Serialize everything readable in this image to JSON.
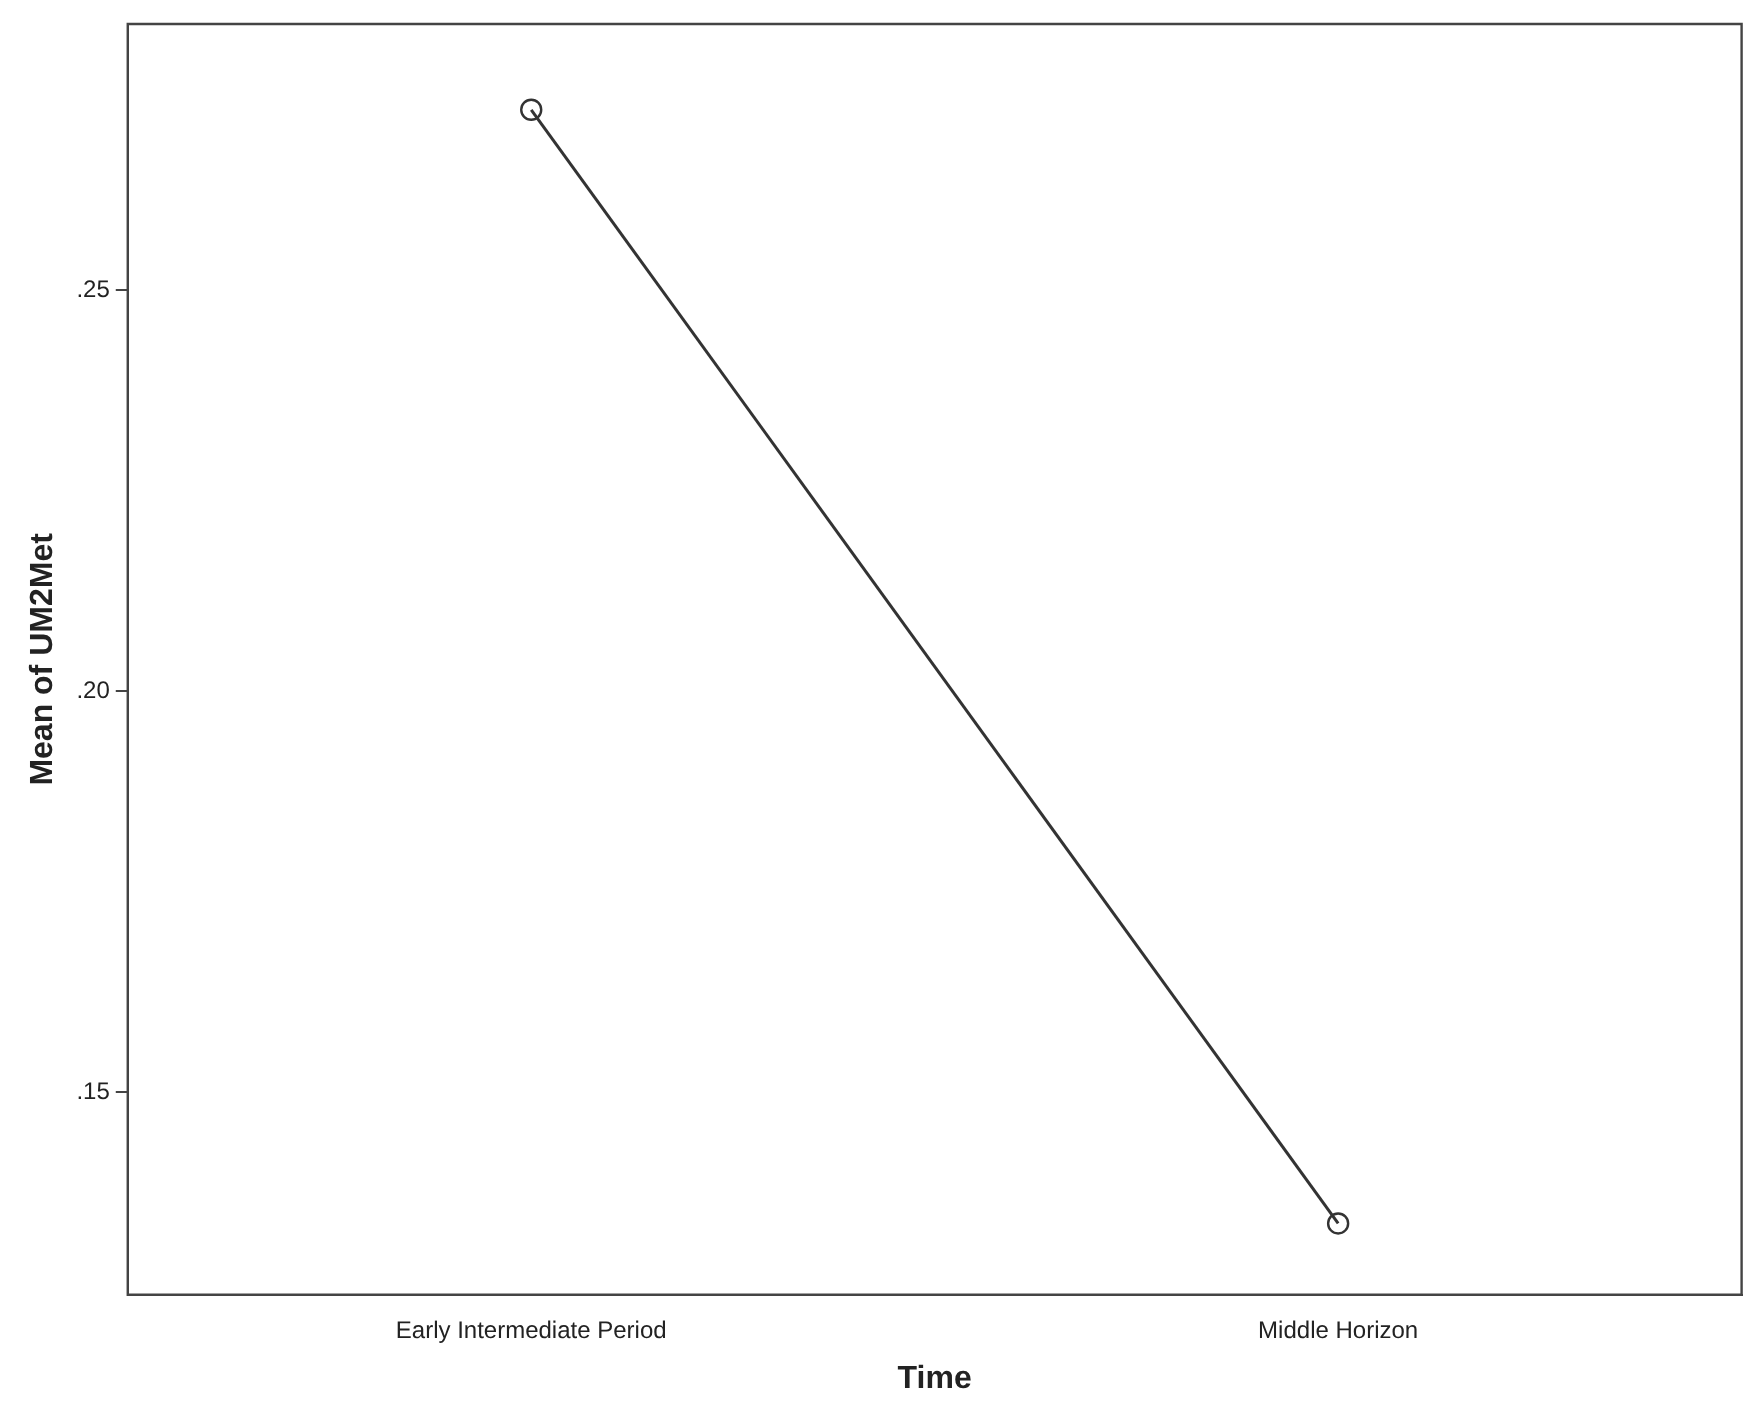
{
  "chart_data": {
    "type": "line",
    "xlabel": "Time",
    "ylabel": "Mean of UM2Met",
    "categories": [
      "Early Intermediate Period",
      "Middle Horizon"
    ],
    "series": [
      {
        "color": "#333333",
        "values": [
          0.2725,
          0.1336
        ]
      }
    ],
    "ylim": [
      0.1247,
      0.2832
    ],
    "yticks": [
      {
        "value": 0.15,
        "label": ".15"
      },
      {
        "value": 0.2,
        "label": ".20"
      },
      {
        "value": 0.25,
        "label": ".25"
      }
    ],
    "grid": false,
    "legend": false,
    "marker": "circle",
    "line_style": "solid"
  }
}
